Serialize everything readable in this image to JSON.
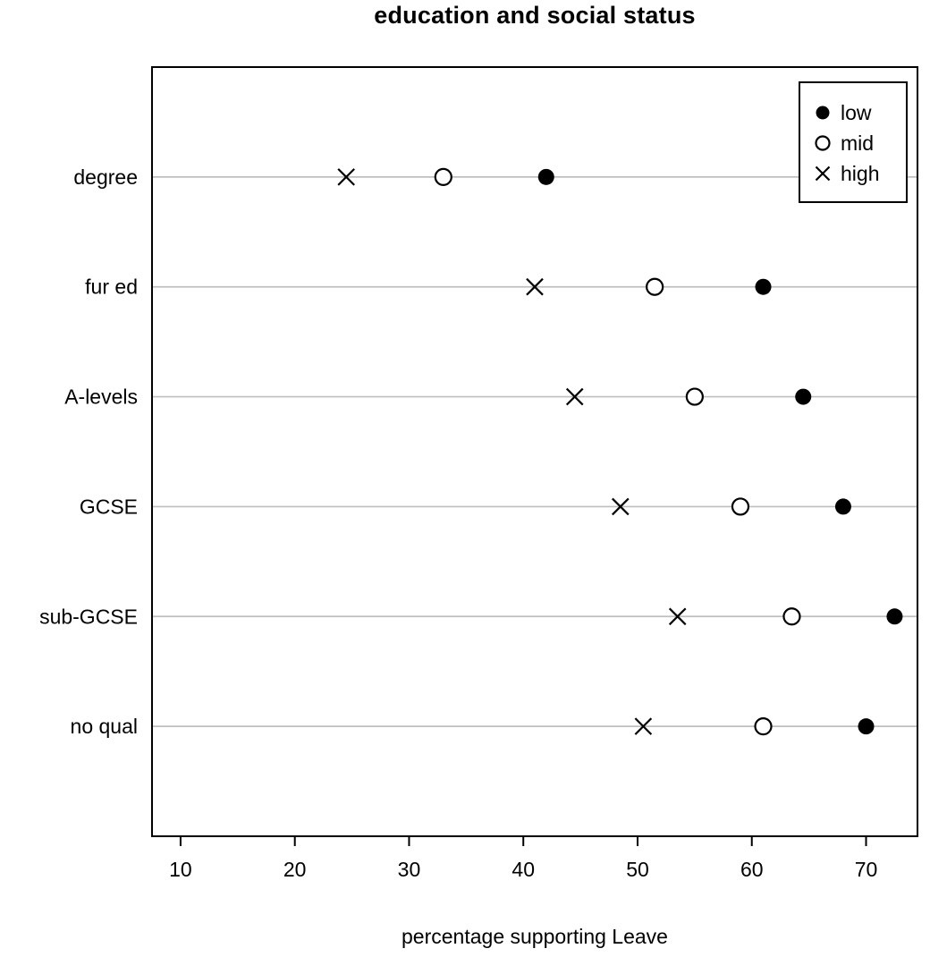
{
  "chart_data": {
    "type": "scatter",
    "variant": "cleveland-dotplot",
    "title": "education and social status",
    "xlabel": "percentage supporting Leave",
    "xlim": [
      7.5,
      74.5
    ],
    "xticks": [
      10,
      20,
      30,
      40,
      50,
      60,
      70
    ],
    "grid": "horizontal-category-lines",
    "categories": [
      "degree",
      "fur ed",
      "A-levels",
      "GCSE",
      "sub-GCSE",
      "no qual"
    ],
    "series": [
      {
        "name": "low",
        "marker": "filled-circle",
        "values": [
          42,
          61,
          64.5,
          68,
          72.5,
          70
        ]
      },
      {
        "name": "mid",
        "marker": "open-circle",
        "values": [
          33,
          51.5,
          55,
          59,
          63.5,
          61
        ]
      },
      {
        "name": "high",
        "marker": "x",
        "values": [
          24.5,
          41,
          44.5,
          48.5,
          53.5,
          50.5
        ]
      }
    ],
    "legend": {
      "position": "top-right",
      "entries": [
        "low",
        "mid",
        "high"
      ]
    },
    "colors": {
      "foreground": "#000000",
      "gridline": "#bfbfbf",
      "background": "#ffffff"
    }
  }
}
